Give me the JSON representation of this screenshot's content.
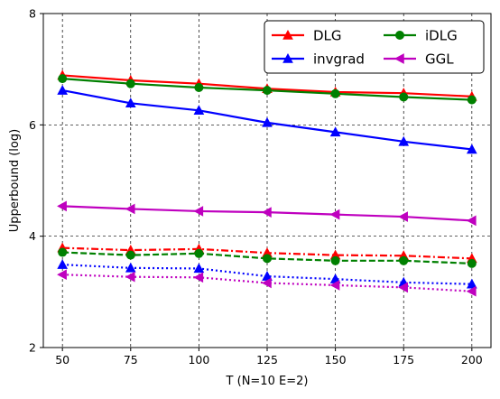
{
  "chart_data": {
    "type": "line",
    "title": "",
    "xlabel": "T (N=10 E=2)",
    "ylabel": "Upperbound (log)",
    "x": [
      50,
      75,
      100,
      125,
      150,
      175,
      200
    ],
    "xlim": [
      43,
      207
    ],
    "ylim": [
      2,
      8
    ],
    "xticks": [
      "50",
      "75",
      "100",
      "125",
      "150",
      "175",
      "200"
    ],
    "yticks": [
      "2",
      "4",
      "6",
      "8"
    ],
    "grid": true,
    "legend_position": "top-right",
    "legend_entries": [
      "DLG",
      "iDLG",
      "invgrad",
      "GGL"
    ],
    "series": [
      {
        "name": "DLG",
        "color": "#ff0000",
        "marker": "triangle-up",
        "line_style": "solid",
        "values": [
          6.89,
          6.8,
          6.74,
          6.65,
          6.59,
          6.57,
          6.51
        ]
      },
      {
        "name": "iDLG",
        "color": "#008000",
        "marker": "circle",
        "line_style": "solid",
        "values": [
          6.83,
          6.74,
          6.67,
          6.62,
          6.56,
          6.5,
          6.45
        ]
      },
      {
        "name": "invgrad",
        "color": "#0000ff",
        "marker": "triangle-up",
        "line_style": "solid",
        "values": [
          6.62,
          6.39,
          6.26,
          6.04,
          5.87,
          5.7,
          5.56
        ]
      },
      {
        "name": "GGL",
        "color": "#bf00bf",
        "marker": "triangle-left",
        "line_style": "solid",
        "values": [
          4.54,
          4.49,
          4.45,
          4.43,
          4.39,
          4.35,
          4.28
        ]
      },
      {
        "color": "#ff0000",
        "marker": "triangle-up",
        "line_style": "dashdot",
        "values": [
          3.79,
          3.75,
          3.77,
          3.7,
          3.66,
          3.65,
          3.6
        ]
      },
      {
        "color": "#008000",
        "marker": "circle",
        "line_style": "dashed",
        "values": [
          3.71,
          3.66,
          3.69,
          3.6,
          3.56,
          3.56,
          3.51
        ]
      },
      {
        "color": "#0000ff",
        "marker": "triangle-up",
        "line_style": "dotted",
        "values": [
          3.49,
          3.43,
          3.42,
          3.28,
          3.23,
          3.17,
          3.14
        ]
      },
      {
        "color": "#bf00bf",
        "marker": "triangle-left",
        "line_style": "dotted",
        "values": [
          3.31,
          3.27,
          3.26,
          3.16,
          3.12,
          3.08,
          3.01
        ]
      }
    ]
  }
}
